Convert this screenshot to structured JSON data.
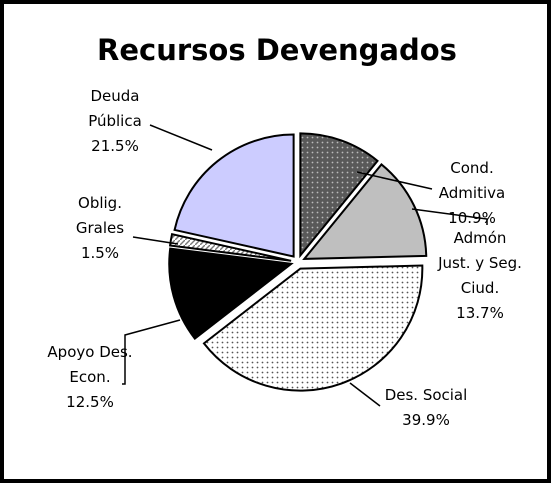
{
  "chart_data": {
    "type": "pie",
    "title": "Recursos Devengados",
    "categories": [
      "Cond.\nAdmitiva",
      "Admón\nJust. y Seg.\nCiud.",
      "Des. Social",
      "Apoyo Des.\nEcon.",
      "Oblig.\nGrales",
      "Deuda\nPública"
    ],
    "values": [
      10.9,
      13.7,
      39.9,
      12.5,
      1.5,
      21.5
    ],
    "value_labels": [
      "10.9%",
      "13.7%",
      "39.9%",
      "12.5%",
      "1.5%",
      "21.5%"
    ],
    "colors": [
      "#595959",
      "#bfbfbf",
      "#ffffff",
      "#000000",
      "#ffffff",
      "#ccccff"
    ],
    "patterns": [
      "dots",
      "none",
      "dots",
      "none",
      "hatch",
      "none"
    ],
    "start_angle": 90,
    "direction": "clockwise",
    "exploded": true
  }
}
